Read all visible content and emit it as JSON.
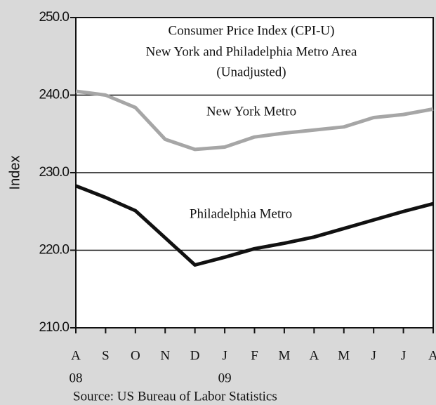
{
  "chart_data": {
    "type": "line",
    "title": [
      "Consumer Price Index (CPI-U)",
      "New York and Philadelphia Metro Area",
      "(Unadjusted)"
    ],
    "y_label": "Index",
    "source": "Source: US Bureau of Labor Statistics",
    "categories": [
      "A",
      "S",
      "O",
      "N",
      "D",
      "J",
      "F",
      "M",
      "A",
      "M",
      "J",
      "J",
      "A"
    ],
    "year_labels": [
      "08",
      null,
      null,
      null,
      null,
      "09",
      null,
      null,
      null,
      null,
      null,
      null,
      null
    ],
    "series": [
      {
        "name": "New York Metro",
        "color": "#a6a6a6",
        "values": [
          240.5,
          240.0,
          238.4,
          234.3,
          233.0,
          233.3,
          234.6,
          235.1,
          235.5,
          235.9,
          237.1,
          237.5,
          238.2
        ]
      },
      {
        "name": "Philadelphia Metro",
        "color": "#111111",
        "values": [
          228.3,
          226.8,
          225.1,
          221.6,
          218.1,
          219.1,
          220.2,
          220.9,
          221.7,
          222.8,
          223.9,
          225.0,
          226.0
        ]
      }
    ],
    "ylim": [
      210,
      250
    ],
    "yticks": [
      {
        "value": 210,
        "label": "210.0"
      },
      {
        "value": 220,
        "label": "220.0"
      },
      {
        "value": 230,
        "label": "230.0"
      },
      {
        "value": 240,
        "label": "240.0"
      },
      {
        "value": 250,
        "label": "250.0"
      }
    ],
    "grid": true
  }
}
